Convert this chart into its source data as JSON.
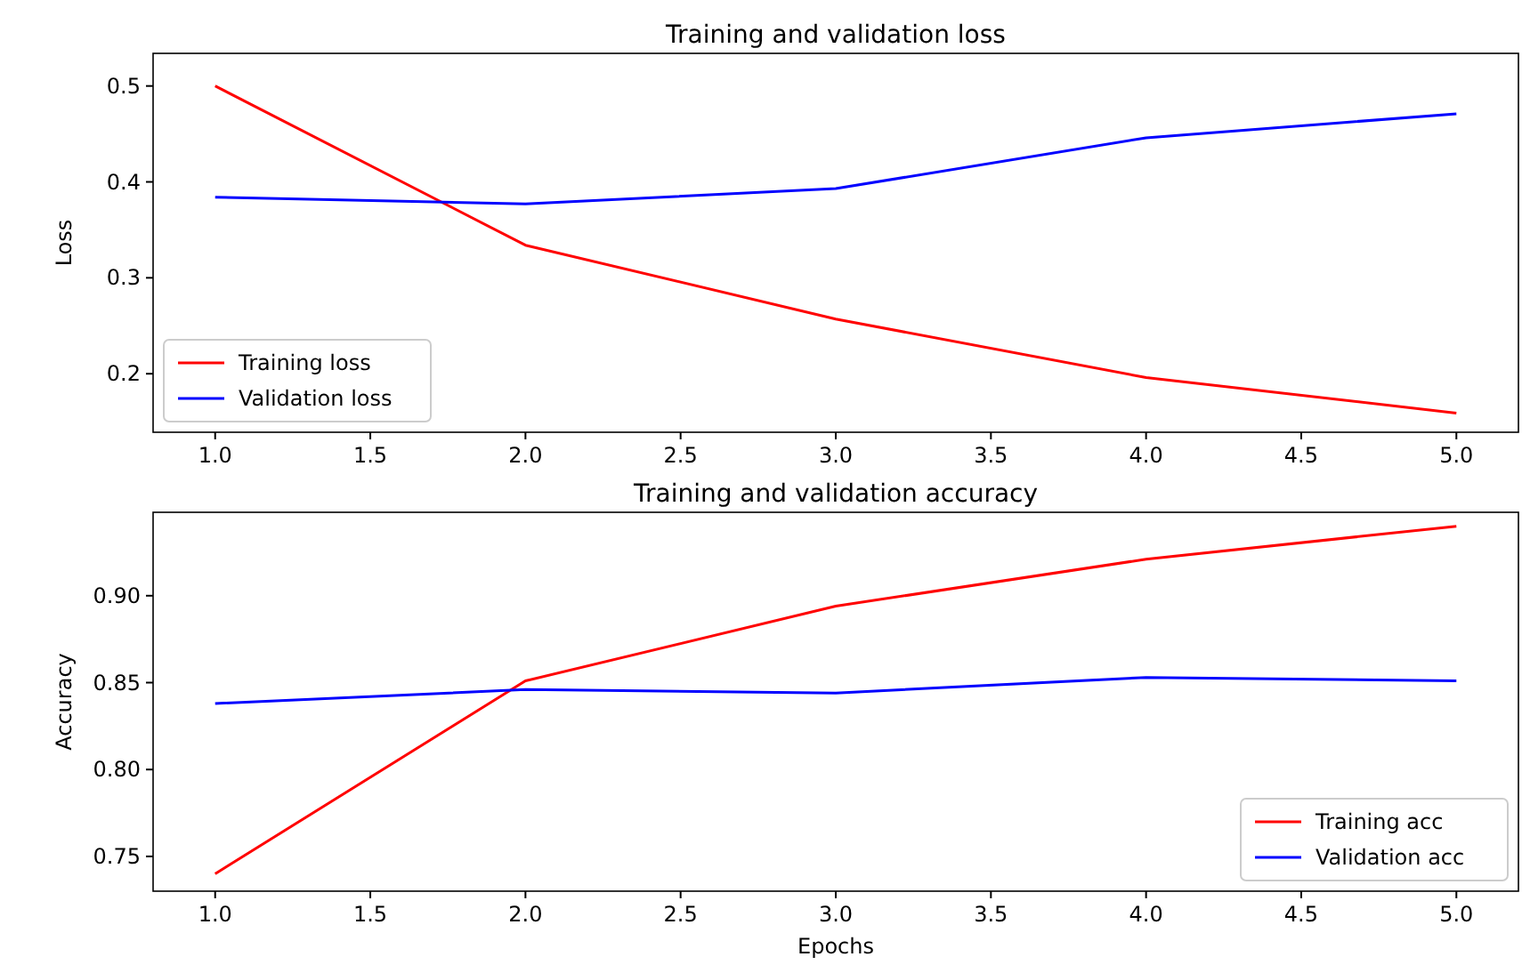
{
  "chart_data": [
    {
      "type": "line",
      "title": "Training and validation loss",
      "ylabel": "Loss",
      "x": [
        1,
        2,
        3,
        4,
        5
      ],
      "series": [
        {
          "name": "Training loss",
          "color": "#ff0000",
          "values": [
            0.5,
            0.334,
            0.257,
            0.196,
            0.159
          ]
        },
        {
          "name": "Validation loss",
          "color": "#0000ff",
          "values": [
            0.384,
            0.377,
            0.393,
            0.446,
            0.471
          ]
        }
      ],
      "xlim": [
        0.8,
        5.2
      ],
      "ylim": [
        0.139,
        0.534
      ],
      "xticks": [
        {
          "value": 1,
          "label": "1.0"
        },
        1.5,
        {
          "value": 2,
          "label": "2.0"
        },
        2.5,
        {
          "value": 3,
          "label": "3.0"
        },
        3.5,
        {
          "value": 4,
          "label": "4.0"
        },
        4.5,
        {
          "value": 5,
          "label": "5.0"
        }
      ],
      "yticks": [
        0.2,
        0.3,
        0.4,
        0.5
      ],
      "legend": "bottom left",
      "grid": false
    },
    {
      "type": "line",
      "title": "Training and validation accuracy",
      "xlabel": "Epochs",
      "ylabel": "Accuracy",
      "x": [
        1,
        2,
        3,
        4,
        5
      ],
      "series": [
        {
          "name": "Training acc",
          "color": "#ff0000",
          "values": [
            0.74,
            0.851,
            0.894,
            0.921,
            0.94
          ]
        },
        {
          "name": "Validation acc",
          "color": "#0000ff",
          "values": [
            0.838,
            0.846,
            0.844,
            0.853,
            0.851
          ]
        }
      ],
      "xlim": [
        0.8,
        5.2
      ],
      "ylim": [
        0.73,
        0.948
      ],
      "xticks": [
        {
          "value": 1,
          "label": "1.0"
        },
        1.5,
        {
          "value": 2,
          "label": "2.0"
        },
        2.5,
        {
          "value": 3,
          "label": "3.0"
        },
        3.5,
        {
          "value": 4,
          "label": "4.0"
        },
        4.5,
        {
          "value": 5,
          "label": "5.0"
        }
      ],
      "yticks": [
        0.75,
        {
          "value": 0.8,
          "label": "0.80"
        },
        0.85,
        {
          "value": 0.9,
          "label": "0.90"
        }
      ],
      "legend": "bottom right",
      "grid": false
    }
  ]
}
